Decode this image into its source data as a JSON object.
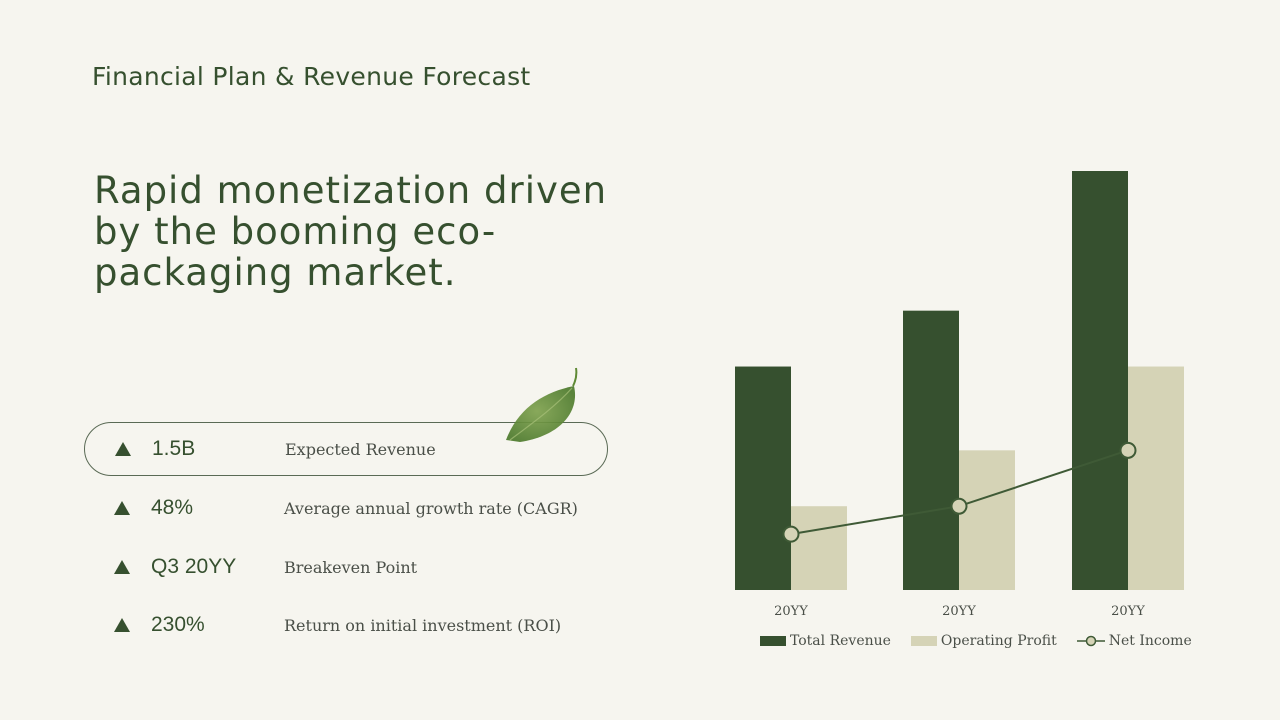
{
  "slide": {
    "title": "Financial Plan & Revenue Forecast",
    "headline": "Rapid monetization driven by the booming eco-packaging market."
  },
  "metrics": [
    {
      "value": "1.5B",
      "label": "Expected Revenue",
      "highlighted": true
    },
    {
      "value": "48%",
      "label": "Average annual growth rate (CAGR)",
      "highlighted": false
    },
    {
      "value": "Q3 20YY",
      "label": "Breakeven Point",
      "highlighted": false
    },
    {
      "value": "230%",
      "label": "Return on initial investment (ROI)",
      "highlighted": false
    }
  ],
  "icons": {
    "metric_marker": "triangle-up-icon",
    "decoration": "leaf-icon"
  },
  "colors": {
    "dark_green": "#36502f",
    "beige": "#d5d3b6",
    "background": "#f6f5ef",
    "line": "#3f5a36",
    "marker_fill": "#d5d3b6"
  },
  "chart_data": {
    "type": "bar",
    "categories": [
      "20YY",
      "20YY",
      "20YY"
    ],
    "series": [
      {
        "name": "Total Revenue",
        "kind": "bar",
        "values": [
          80,
          100,
          150
        ]
      },
      {
        "name": "Operating Profit",
        "kind": "bar",
        "values": [
          30,
          50,
          80
        ]
      },
      {
        "name": "Net Income",
        "kind": "line",
        "values": [
          20,
          30,
          50
        ]
      }
    ],
    "ylim": [
      0,
      150
    ],
    "grid": false,
    "legend_position": "bottom",
    "title": "",
    "xlabel": "",
    "ylabel": ""
  }
}
